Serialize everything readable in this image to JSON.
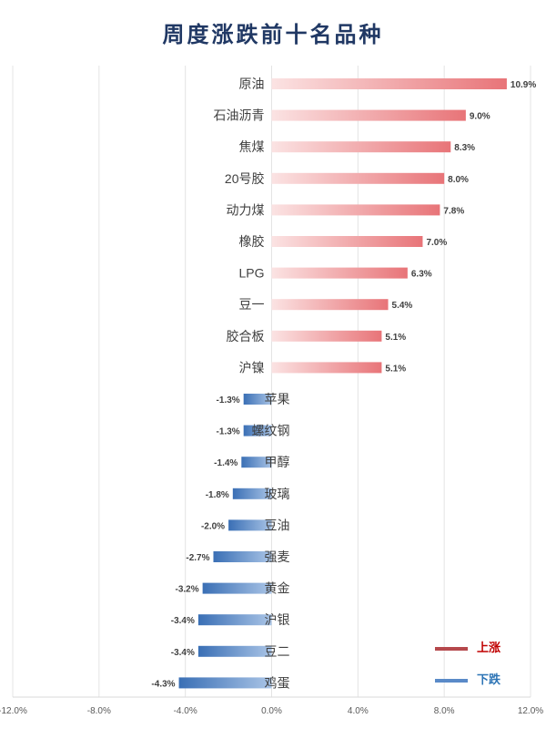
{
  "chart_data": {
    "type": "bar",
    "orientation": "horizontal",
    "title": "周度涨跌前十名品种",
    "categories": [
      "原油",
      "石油沥青",
      "焦煤",
      "20号胶",
      "动力煤",
      "橡胶",
      "LPG",
      "豆一",
      "胶合板",
      "沪镍",
      "苹果",
      "螺纹钢",
      "甲醇",
      "玻璃",
      "豆油",
      "强麦",
      "黄金",
      "沪银",
      "豆二",
      "鸡蛋"
    ],
    "values": [
      10.9,
      9.0,
      8.3,
      8.0,
      7.8,
      7.0,
      6.3,
      5.4,
      5.1,
      5.1,
      -1.3,
      -1.3,
      -1.4,
      -1.8,
      -2.0,
      -2.7,
      -3.2,
      -3.4,
      -3.4,
      -4.3
    ],
    "value_labels": [
      "10.9%",
      "9.0%",
      "8.3%",
      "8.0%",
      "7.8%",
      "7.0%",
      "6.3%",
      "5.4%",
      "5.1%",
      "5.1%",
      "-1.3%",
      "-1.3%",
      "-1.4%",
      "-1.8%",
      "-2.0%",
      "-2.7%",
      "-3.2%",
      "-3.4%",
      "-3.4%",
      "-4.3%"
    ],
    "series": [
      {
        "name": "上涨",
        "color": "#e8787c"
      },
      {
        "name": "下跌",
        "color": "#4a7fc0"
      }
    ],
    "xlim": [
      -12,
      12
    ],
    "xticks": [
      "-12.0%",
      "-8.0%",
      "-4.0%",
      "0.0%",
      "4.0%",
      "8.0%",
      "12.0%"
    ],
    "xtick_values": [
      -12,
      -8,
      -4,
      0,
      4,
      8,
      12
    ],
    "grid": true,
    "legend_position": "bottom-right"
  }
}
